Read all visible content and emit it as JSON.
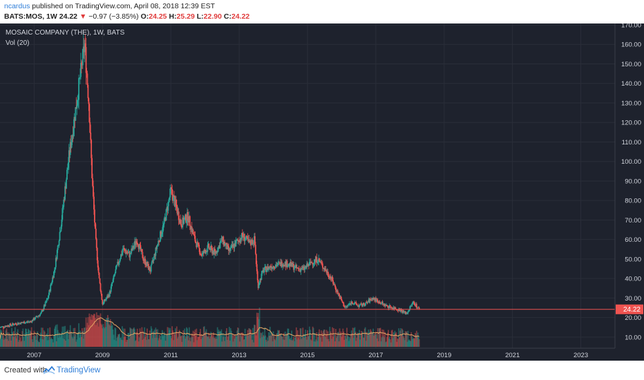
{
  "header": {
    "author": "ncardus",
    "published_text": "published on TradingView.com, April 08, 2018 12:39 EST",
    "symbol": "BATS:MOS, 1W",
    "last": "24.22",
    "change": "−0.97 (−3.85%)",
    "o_label": "O:",
    "o_val": "24.25",
    "h_label": "H:",
    "h_val": "25.29",
    "l_label": "L:",
    "l_val": "22.90",
    "c_label": "C:",
    "c_val": "24.22"
  },
  "footer": {
    "created_with": "Created with",
    "brand": "TradingView"
  },
  "chart_data": {
    "type": "line",
    "title": "MOSAIC COMPANY (THE), 1W, BATS",
    "indicator": "Vol (20)",
    "series": [
      {
        "x": [
          2006.0,
          2006.5,
          2006.9,
          2007.2,
          2007.4,
          2007.6,
          2007.8,
          2008.0,
          2008.2,
          2008.4,
          2008.48,
          2008.6,
          2008.7,
          2008.8,
          2008.9,
          2009.0,
          2009.2,
          2009.4,
          2009.6,
          2009.8,
          2010.0,
          2010.2,
          2010.4,
          2010.6,
          2010.8,
          2011.0,
          2011.1,
          2011.3,
          2011.5,
          2011.7,
          2011.9,
          2012.1,
          2012.3,
          2012.5,
          2012.7,
          2012.9,
          2013.1,
          2013.3,
          2013.45,
          2013.55,
          2013.7,
          2013.9,
          2014.1,
          2014.3,
          2014.5,
          2014.7,
          2014.9,
          2015.1,
          2015.3,
          2015.5,
          2015.7,
          2015.9,
          2016.1,
          2016.3,
          2016.5,
          2016.7,
          2016.9,
          2017.1,
          2017.3,
          2017.5,
          2017.7,
          2017.9,
          2018.1,
          2018.27
        ],
        "values": [
          15,
          17,
          18,
          22,
          30,
          45,
          70,
          100,
          125,
          150,
          160,
          130,
          90,
          60,
          40,
          27,
          32,
          45,
          55,
          52,
          60,
          50,
          44,
          57,
          68,
          85,
          80,
          68,
          72,
          60,
          52,
          56,
          53,
          60,
          54,
          58,
          62,
          58,
          60,
          36,
          44,
          46,
          47,
          48,
          47,
          45,
          45,
          48,
          50,
          45,
          40,
          32,
          25,
          28,
          26,
          27,
          30,
          28,
          26,
          25,
          24,
          22,
          28,
          24.22
        ]
      }
    ],
    "x_ticks": [
      "2007",
      "2009",
      "2011",
      "2013",
      "2015",
      "2017",
      "2019",
      "2021",
      "2023"
    ],
    "y_ticks": [
      "170.00",
      "160.00",
      "150.00",
      "140.00",
      "130.00",
      "120.00",
      "110.00",
      "100.00",
      "90.00",
      "80.00",
      "70.00",
      "60.00",
      "50.00",
      "40.00",
      "30.00",
      "20.00",
      "10.00"
    ],
    "ylim": [
      5,
      170
    ],
    "xlim": [
      2006.0,
      2024.0
    ],
    "last_price_label": "24.22",
    "colors": {
      "background": "#1e222d",
      "up": "#26a69a",
      "down": "#ef5350",
      "price_line": "#ef5350",
      "volume_ma": "#e8a765",
      "grid": "#2a2e39"
    }
  }
}
